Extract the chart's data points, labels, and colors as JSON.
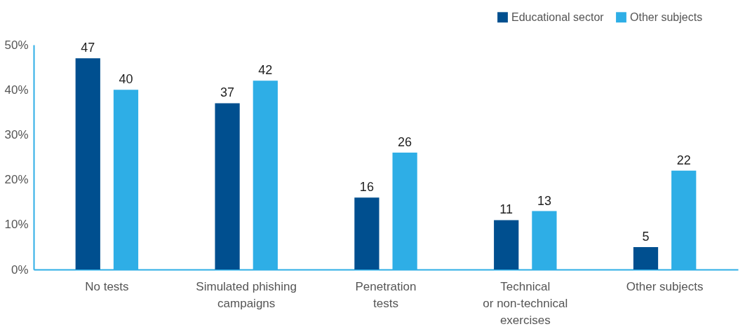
{
  "chart_data": {
    "type": "bar",
    "categories": [
      "No tests",
      "Simulated phishing\ncampaigns",
      "Penetration\ntests",
      "Technical\nor non-technical\nexercises",
      "Other subjects"
    ],
    "series": [
      {
        "name": "Educational sector",
        "color": "#004f8f",
        "values": [
          47,
          37,
          16,
          11,
          5
        ]
      },
      {
        "name": "Other subjects",
        "color": "#2eaee6",
        "values": [
          40,
          42,
          26,
          13,
          22
        ]
      }
    ],
    "ylim": [
      0,
      50
    ],
    "yticks": [
      {
        "value": 0,
        "label": "0%"
      },
      {
        "value": 10,
        "label": "10%"
      },
      {
        "value": 20,
        "label": "20%"
      },
      {
        "value": 30,
        "label": "30%"
      },
      {
        "value": 40,
        "label": "40%"
      },
      {
        "value": 50,
        "label": "50%"
      }
    ],
    "data_labels": true,
    "grid": false,
    "legend": "top right"
  }
}
